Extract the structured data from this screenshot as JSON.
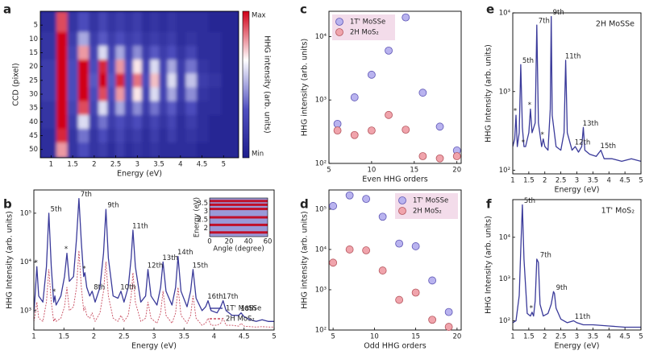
{
  "chart_data": [
    {
      "type": "heatmap",
      "panel": "a",
      "xlabel": "Energy (eV)",
      "ylabel": "CCD (pixel)",
      "x": [
        1.0,
        1.25,
        1.5,
        1.75,
        2.0,
        2.2,
        2.4,
        2.6,
        2.8,
        3.0,
        3.2,
        3.4,
        3.6,
        3.8,
        4.0,
        4.25,
        4.5,
        4.8,
        5.1
      ],
      "y": [
        5,
        10,
        15,
        20,
        25,
        30,
        35,
        40,
        45,
        50
      ],
      "z": [
        [
          0.1,
          0.9,
          0.15,
          0.3,
          0.15,
          0.25,
          0.15,
          0.2,
          0.15,
          0.2,
          0.1,
          0.15,
          0.1,
          0.15,
          0.1,
          0.1,
          0.1,
          0.05,
          0.05
        ],
        [
          0.15,
          1,
          0.2,
          0.5,
          0.2,
          0.35,
          0.2,
          0.3,
          0.2,
          0.25,
          0.15,
          0.2,
          0.15,
          0.2,
          0.1,
          0.15,
          0.1,
          0.1,
          0.05
        ],
        [
          0.15,
          1,
          0.25,
          0.8,
          0.25,
          0.6,
          0.25,
          0.5,
          0.25,
          0.45,
          0.2,
          0.35,
          0.2,
          0.3,
          0.15,
          0.25,
          0.1,
          0.1,
          0.05
        ],
        [
          0.2,
          1,
          0.3,
          1,
          0.3,
          0.95,
          0.3,
          0.8,
          0.3,
          0.7,
          0.25,
          0.6,
          0.25,
          0.5,
          0.2,
          0.4,
          0.15,
          0.1,
          0.05
        ],
        [
          0.2,
          1,
          0.3,
          1,
          0.35,
          1,
          0.35,
          0.95,
          0.3,
          0.85,
          0.3,
          0.75,
          0.25,
          0.6,
          0.2,
          0.55,
          0.2,
          0.15,
          0.05
        ],
        [
          0.2,
          1,
          0.3,
          1,
          0.3,
          0.9,
          0.3,
          0.8,
          0.3,
          0.7,
          0.25,
          0.6,
          0.25,
          0.5,
          0.2,
          0.45,
          0.15,
          0.1,
          0.05
        ],
        [
          0.15,
          1,
          0.25,
          0.9,
          0.25,
          0.6,
          0.25,
          0.5,
          0.25,
          0.45,
          0.2,
          0.4,
          0.2,
          0.35,
          0.15,
          0.3,
          0.1,
          0.1,
          0.05
        ],
        [
          0.15,
          1,
          0.2,
          0.6,
          0.2,
          0.4,
          0.2,
          0.3,
          0.2,
          0.3,
          0.15,
          0.25,
          0.15,
          0.25,
          0.1,
          0.2,
          0.1,
          0.05,
          0.05
        ],
        [
          0.1,
          0.95,
          0.15,
          0.4,
          0.15,
          0.3,
          0.15,
          0.25,
          0.15,
          0.2,
          0.1,
          0.2,
          0.1,
          0.2,
          0.1,
          0.15,
          0.1,
          0.05,
          0.05
        ],
        [
          0.1,
          0.8,
          0.15,
          0.3,
          0.15,
          0.2,
          0.1,
          0.2,
          0.1,
          0.15,
          0.1,
          0.15,
          0.1,
          0.1,
          0.1,
          0.1,
          0.05,
          0.05,
          0.05
        ]
      ],
      "xlim": [
        0.75,
        5.35
      ],
      "ylim": [
        0,
        53
      ],
      "y_inverted": true,
      "xticks": [
        1,
        1.5,
        2,
        2.5,
        3,
        3.5,
        4,
        4.5,
        5
      ],
      "yticks": [
        5,
        10,
        15,
        20,
        25,
        30,
        35,
        40,
        45,
        50
      ],
      "colorscale": [
        "#1e1e8c",
        "#5050c0",
        "#ffffff",
        "#d00018"
      ],
      "colorbar": {
        "label": "HHG intensity (arb. units)",
        "max_label": "Max",
        "min_label": "Min"
      }
    },
    {
      "type": "line",
      "panel": "b",
      "xlabel": "Energy (eV)",
      "ylabel": "HHG Intensity (arb. units)",
      "log_y": true,
      "x": [
        1.0,
        1.02,
        1.05,
        1.08,
        1.15,
        1.21,
        1.25,
        1.29,
        1.33,
        1.35,
        1.37,
        1.45,
        1.51,
        1.55,
        1.59,
        1.66,
        1.71,
        1.75,
        1.79,
        1.83,
        1.85,
        1.88,
        1.93,
        1.97,
        2.02,
        2.1,
        2.16,
        2.2,
        2.24,
        2.32,
        2.4,
        2.45,
        2.5,
        2.57,
        2.62,
        2.65,
        2.69,
        2.78,
        2.86,
        2.9,
        2.95,
        3.05,
        3.11,
        3.15,
        3.2,
        3.3,
        3.36,
        3.4,
        3.45,
        3.55,
        3.61,
        3.65,
        3.7,
        3.8,
        3.86,
        3.9,
        3.95,
        4.05,
        4.11,
        4.15,
        4.2,
        4.3,
        4.41,
        4.45,
        4.5,
        4.6,
        4.7,
        4.8,
        4.9,
        5.0
      ],
      "series": [
        {
          "name": "1T' MoSSe",
          "color": "#3a3a9a",
          "linestyle": "solid",
          "values": [
            900,
            2000,
            8000,
            2000,
            1500,
            8000,
            100000,
            8000,
            1500,
            2000,
            1300,
            2000,
            5000,
            15000,
            4000,
            5000,
            30000,
            200000,
            25000,
            5000,
            6000,
            3000,
            2000,
            2500,
            1500,
            3000,
            15000,
            120000,
            12000,
            2000,
            1800,
            2500,
            1500,
            3000,
            12000,
            45000,
            8000,
            1500,
            2000,
            7000,
            2000,
            1300,
            3000,
            10000,
            2500,
            1300,
            3000,
            13000,
            2500,
            1200,
            2500,
            7000,
            1800,
            1000,
            1200,
            1600,
            1000,
            900,
            1200,
            1600,
            1000,
            800,
            800,
            900,
            750,
            650,
            600,
            650,
            600,
            600
          ]
        },
        {
          "name": "2H MoS₂",
          "color": "#c84b5e",
          "linestyle": "dashed",
          "values": [
            600,
            800,
            1500,
            700,
            600,
            1500,
            7000,
            1500,
            600,
            700,
            600,
            700,
            1200,
            3000,
            1000,
            1200,
            3000,
            17000,
            3000,
            1000,
            1200,
            800,
            700,
            900,
            600,
            900,
            2500,
            10000,
            2000,
            700,
            600,
            800,
            600,
            800,
            2000,
            6000,
            1500,
            600,
            700,
            1500,
            700,
            550,
            900,
            2500,
            800,
            550,
            900,
            3000,
            800,
            550,
            800,
            2000,
            700,
            500,
            550,
            700,
            500,
            500,
            550,
            700,
            500,
            500,
            480,
            550,
            480,
            470,
            460,
            470,
            460,
            460
          ]
        }
      ],
      "xlim": [
        1,
        5
      ],
      "ylim": [
        400,
        300000
      ],
      "xticks": [
        1,
        1.5,
        2,
        2.5,
        3,
        3.5,
        4,
        4.5,
        5
      ],
      "yticks": [
        {
          "value": 1000,
          "label": "10³"
        },
        {
          "value": 10000,
          "label": "10⁴"
        },
        {
          "value": 100000,
          "label": "10⁵"
        }
      ],
      "legend": "lower right",
      "annotations": [
        {
          "text": "*",
          "x": 1.05,
          "y": 8000
        },
        {
          "text": "5th",
          "x": 1.25,
          "y": 100000
        },
        {
          "text": "*",
          "x": 1.35,
          "y": 2000
        },
        {
          "text": "*",
          "x": 1.55,
          "y": 15000
        },
        {
          "text": "7th",
          "x": 1.75,
          "y": 200000
        },
        {
          "text": "*",
          "x": 1.85,
          "y": 6000
        },
        {
          "text": "8th",
          "x": 1.97,
          "y": 2500
        },
        {
          "text": "9th",
          "x": 2.2,
          "y": 120000
        },
        {
          "text": "10th",
          "x": 2.45,
          "y": 2500
        },
        {
          "text": "11th",
          "x": 2.65,
          "y": 45000
        },
        {
          "text": "12th",
          "x": 2.9,
          "y": 7000
        },
        {
          "text": "13th",
          "x": 3.15,
          "y": 10000
        },
        {
          "text": "14th",
          "x": 3.4,
          "y": 13000
        },
        {
          "text": "15th",
          "x": 3.65,
          "y": 7000
        },
        {
          "text": "16th",
          "x": 3.9,
          "y": 1600
        },
        {
          "text": "17th",
          "x": 4.15,
          "y": 1600
        },
        {
          "text": "18th",
          "x": 4.45,
          "y": 900
        }
      ],
      "inset": {
        "xlabel": "Angle (degree)",
        "ylabel": "Energy (eV)",
        "xlim": [
          0,
          60
        ],
        "ylim": [
          1.5,
          3.8
        ],
        "xticks": [
          0,
          20,
          40,
          60
        ],
        "yticks": [
          2,
          2.5,
          3,
          3.5
        ],
        "bands": [
          1.75,
          2.2,
          2.65,
          3.15,
          3.4,
          3.62
        ],
        "band_color": "#c0102a",
        "background": "#9a9ad8"
      }
    },
    {
      "type": "scatter",
      "panel": "c",
      "xlabel": "Even HHG orders",
      "ylabel": "HHG intensity (arb. units)",
      "log_y": true,
      "x": [
        6,
        8,
        10,
        12,
        14,
        16,
        18,
        20
      ],
      "series": [
        {
          "name": "1T' MoSSe",
          "color": "#b9b3ef",
          "edgecolor": "#5d55b5",
          "values": [
            420,
            1100,
            2500,
            6000,
            20000,
            1300,
            380,
            160
          ]
        },
        {
          "name": "2H MoS₂",
          "color": "#f0a4ac",
          "edgecolor": "#b5545c",
          "values": [
            330,
            280,
            330,
            580,
            340,
            130,
            120,
            130
          ]
        }
      ],
      "xlim": [
        5,
        20.5
      ],
      "ylim": [
        100,
        25000
      ],
      "xticks": [
        5,
        10,
        15,
        20
      ],
      "yticks": [
        {
          "value": 100,
          "label": "10²"
        },
        {
          "value": 1000,
          "label": "10³"
        },
        {
          "value": 10000,
          "label": "10⁴"
        }
      ],
      "legend": "upper left",
      "legend_background": "#f3dcea"
    },
    {
      "type": "scatter",
      "panel": "d",
      "xlabel": "Odd HHG orders",
      "ylabel": "HHG intensity (arb. units)",
      "log_y": true,
      "x": [
        5,
        7,
        9,
        11,
        13,
        15,
        17,
        19
      ],
      "series": [
        {
          "name": "1T' MoSSe",
          "color": "#b9b3ef",
          "edgecolor": "#5d55b5",
          "values": [
            120000,
            220000,
            180000,
            65000,
            14000,
            12000,
            1700,
            280
          ]
        },
        {
          "name": "2H MoS₂",
          "color": "#f0a4ac",
          "edgecolor": "#b5545c",
          "values": [
            4700,
            10000,
            9500,
            3000,
            560,
            850,
            180,
            120
          ]
        }
      ],
      "xlim": [
        4.5,
        20.5
      ],
      "ylim": [
        100,
        300000
      ],
      "xticks": [
        5,
        10,
        15,
        20
      ],
      "yticks": [
        {
          "value": 100,
          "label": "10²"
        },
        {
          "value": 1000,
          "label": "10³"
        },
        {
          "value": 10000,
          "label": "10⁴"
        },
        {
          "value": 100000,
          "label": "10⁵"
        }
      ],
      "legend": "upper right",
      "legend_background": "#f3dcea"
    },
    {
      "type": "line",
      "panel": "e",
      "xlabel": "Energy (eV)",
      "ylabel": "HHG Intensity (arb. units)",
      "log_y": true,
      "note": "2H MoSSe",
      "x": [
        1.0,
        1.06,
        1.1,
        1.14,
        1.2,
        1.25,
        1.3,
        1.35,
        1.4,
        1.5,
        1.55,
        1.6,
        1.7,
        1.75,
        1.8,
        1.9,
        1.95,
        2.0,
        2.1,
        2.17,
        2.2,
        2.23,
        2.35,
        2.5,
        2.6,
        2.65,
        2.7,
        2.85,
        2.95,
        3.05,
        3.15,
        3.2,
        3.25,
        3.4,
        3.6,
        3.75,
        3.85,
        4.1,
        4.4,
        4.7,
        5.0
      ],
      "values": [
        200,
        250,
        500,
        200,
        300,
        2200,
        350,
        200,
        200,
        300,
        600,
        300,
        400,
        7000,
        400,
        200,
        250,
        200,
        180,
        600,
        9000,
        500,
        200,
        180,
        300,
        2500,
        300,
        180,
        200,
        170,
        200,
        350,
        180,
        160,
        150,
        180,
        140,
        140,
        130,
        140,
        130
      ],
      "color": "#3a3a9a",
      "xlim": [
        1,
        5
      ],
      "ylim": [
        90,
        10000
      ],
      "xticks": [
        1,
        1.5,
        2,
        2.5,
        3,
        3.5,
        4,
        4.5,
        5
      ],
      "yticks": [
        {
          "value": 100,
          "label": "10²"
        },
        {
          "value": 1000,
          "label": "10³"
        },
        {
          "value": 10000,
          "label": "10⁴"
        }
      ],
      "annotations": [
        {
          "text": "*",
          "x": 1.1,
          "y": 500
        },
        {
          "text": "5th",
          "x": 1.25,
          "y": 2200
        },
        {
          "text": "*",
          "x": 1.35,
          "y": 200
        },
        {
          "text": "*",
          "x": 1.55,
          "y": 600
        },
        {
          "text": "7th",
          "x": 1.75,
          "y": 7000
        },
        {
          "text": "*",
          "x": 1.95,
          "y": 250
        },
        {
          "text": "9th",
          "x": 2.2,
          "y": 9000
        },
        {
          "text": "11th",
          "x": 2.65,
          "y": 2500
        },
        {
          "text": "12th",
          "x": 2.95,
          "y": 200
        },
        {
          "text": "13th",
          "x": 3.2,
          "y": 350
        },
        {
          "text": "15th",
          "x": 3.75,
          "y": 180
        }
      ]
    },
    {
      "type": "line",
      "panel": "f",
      "xlabel": "Energy (eV)",
      "ylabel": "HHG Intensity (arb. units)",
      "log_y": true,
      "note": "1T' MoS₂",
      "x": [
        1.0,
        1.1,
        1.2,
        1.25,
        1.3,
        1.35,
        1.45,
        1.55,
        1.6,
        1.65,
        1.7,
        1.75,
        1.8,
        1.85,
        1.95,
        2.1,
        2.2,
        2.27,
        2.3,
        2.35,
        2.5,
        2.7,
        2.9,
        3.0,
        3.2,
        3.5,
        4.0,
        4.5,
        5.0
      ],
      "values": [
        90,
        100,
        400,
        5000,
        60000,
        3000,
        150,
        130,
        160,
        130,
        300,
        3000,
        2500,
        250,
        130,
        150,
        250,
        500,
        450,
        200,
        110,
        90,
        100,
        90,
        80,
        80,
        75,
        70,
        70
      ],
      "color": "#3a3a9a",
      "xlim": [
        1,
        5
      ],
      "ylim": [
        60,
        80000
      ],
      "xticks": [
        1,
        1.5,
        2,
        2.5,
        3,
        3.5,
        4,
        4.5,
        5
      ],
      "yticks": [
        {
          "value": 100,
          "label": "10²"
        },
        {
          "value": 1000,
          "label": "10³"
        },
        {
          "value": 10000,
          "label": "10⁴"
        }
      ],
      "annotations": [
        {
          "text": "5th",
          "x": 1.3,
          "y": 60000
        },
        {
          "text": "*",
          "x": 1.6,
          "y": 160
        },
        {
          "text": "7th",
          "x": 1.8,
          "y": 3000
        },
        {
          "text": "9th",
          "x": 2.3,
          "y": 500
        },
        {
          "text": "11th",
          "x": 2.95,
          "y": 100
        }
      ]
    }
  ]
}
